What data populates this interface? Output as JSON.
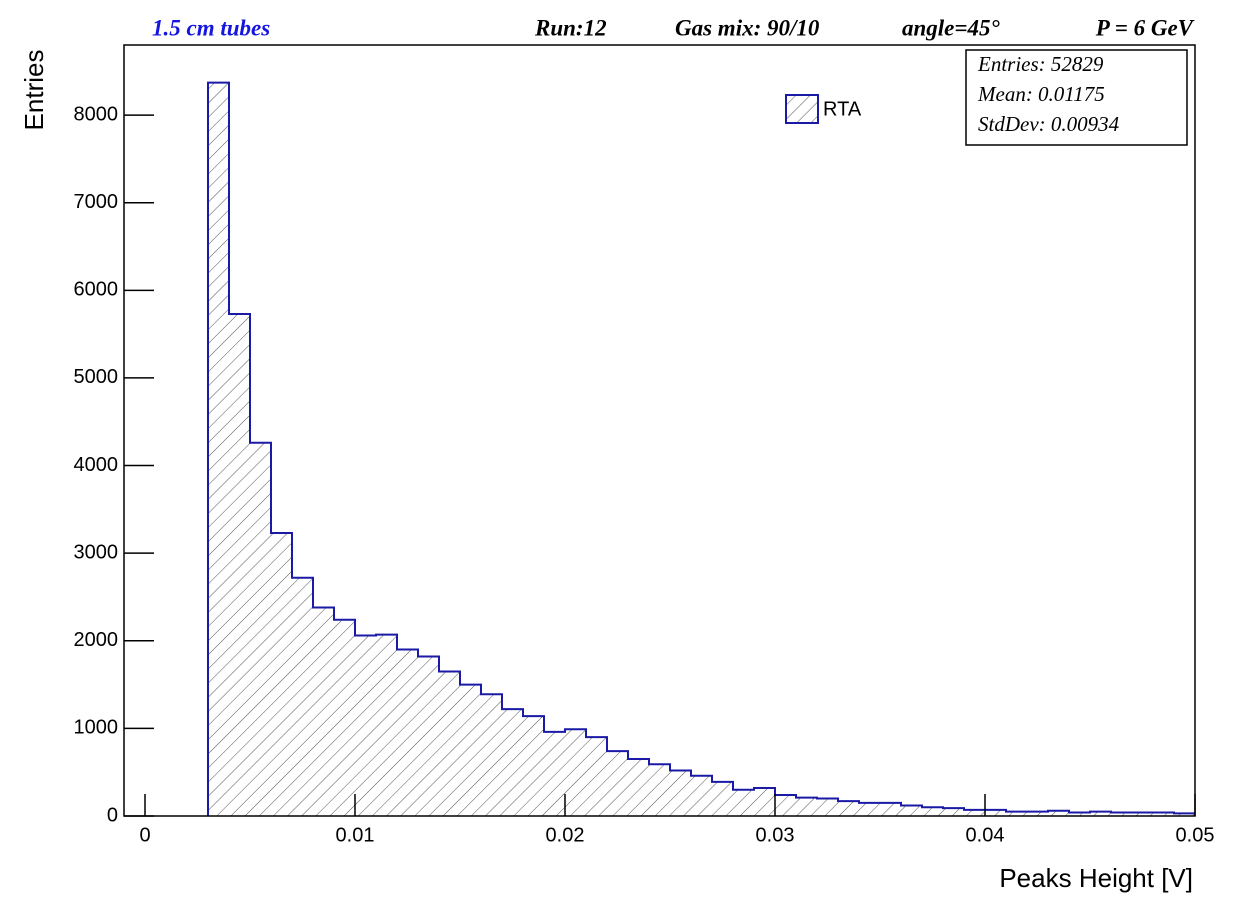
{
  "chart_data": {
    "type": "histogram",
    "header": {
      "label": "1.5 cm tubes",
      "run": "Run:12",
      "gas": "Gas mix: 90/10",
      "angle": "angle=45°",
      "momentum": "P = 6 GeV"
    },
    "x_label": "Peaks Height [V]",
    "y_label": "Entries",
    "series": [
      {
        "name": "RTA",
        "color": "#1a1aa6",
        "bins": [
          0.003,
          0.004,
          0.005,
          0.006,
          0.007,
          0.008,
          0.009,
          0.01,
          0.011,
          0.012,
          0.013,
          0.014,
          0.015,
          0.016,
          0.017,
          0.018,
          0.019,
          0.02,
          0.021,
          0.022,
          0.023,
          0.024,
          0.025,
          0.026,
          0.027,
          0.028,
          0.029,
          0.03,
          0.031,
          0.032,
          0.033,
          0.034,
          0.035,
          0.036,
          0.037,
          0.038,
          0.039,
          0.04,
          0.041,
          0.042,
          0.043,
          0.044,
          0.045,
          0.046,
          0.047,
          0.048,
          0.049,
          0.05
        ],
        "values": [
          8370,
          5730,
          4260,
          3230,
          2720,
          2380,
          2240,
          2060,
          2070,
          1900,
          1820,
          1650,
          1500,
          1390,
          1220,
          1140,
          960,
          990,
          900,
          740,
          650,
          590,
          520,
          460,
          390,
          300,
          320,
          240,
          210,
          200,
          170,
          150,
          150,
          120,
          100,
          90,
          70,
          70,
          50,
          50,
          60,
          40,
          50,
          40,
          40,
          40,
          30
        ]
      }
    ],
    "stats": [
      "Entries: 52829",
      "Mean: 0.01175",
      "StdDev: 0.00934"
    ],
    "xlim": [
      -0.001,
      0.05
    ],
    "ylim": [
      0,
      8800
    ],
    "xticks": [
      0,
      0.01,
      0.02,
      0.03,
      0.04,
      0.05
    ],
    "yticks": [
      0,
      1000,
      2000,
      3000,
      4000,
      5000,
      6000,
      7000,
      8000
    ]
  }
}
